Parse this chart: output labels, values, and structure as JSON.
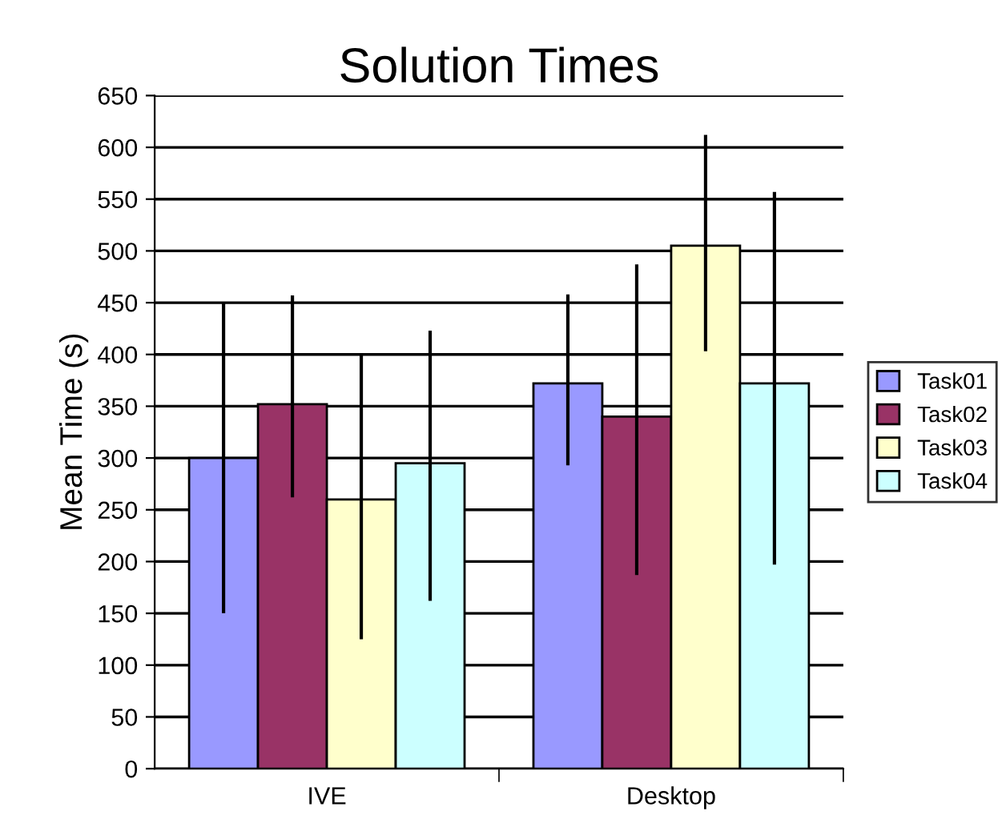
{
  "chart_data": {
    "type": "bar",
    "title": "Solution Times",
    "ylabel": "Mean Time (s)",
    "categories": [
      "IVE",
      "Desktop"
    ],
    "series": [
      {
        "name": "Task01",
        "color": "#9999ff",
        "values": [
          300,
          372
        ],
        "errors": [
          [
            150,
            450
          ],
          [
            293,
            458
          ]
        ]
      },
      {
        "name": "Task02",
        "color": "#993366",
        "values": [
          352,
          340
        ],
        "errors": [
          [
            262,
            457
          ],
          [
            187,
            487
          ]
        ]
      },
      {
        "name": "Task03",
        "color": "#ffffcc",
        "values": [
          260,
          505
        ],
        "errors": [
          [
            125,
            400
          ],
          [
            403,
            612
          ]
        ]
      },
      {
        "name": "Task04",
        "color": "#ccffff",
        "values": [
          295,
          372
        ],
        "errors": [
          [
            162,
            423
          ],
          [
            197,
            557
          ]
        ]
      }
    ],
    "ylim": [
      0,
      650
    ],
    "yticks": [
      0,
      50,
      100,
      150,
      200,
      250,
      300,
      350,
      400,
      450,
      500,
      550,
      600,
      650
    ],
    "grid": "y",
    "legend": "right"
  }
}
